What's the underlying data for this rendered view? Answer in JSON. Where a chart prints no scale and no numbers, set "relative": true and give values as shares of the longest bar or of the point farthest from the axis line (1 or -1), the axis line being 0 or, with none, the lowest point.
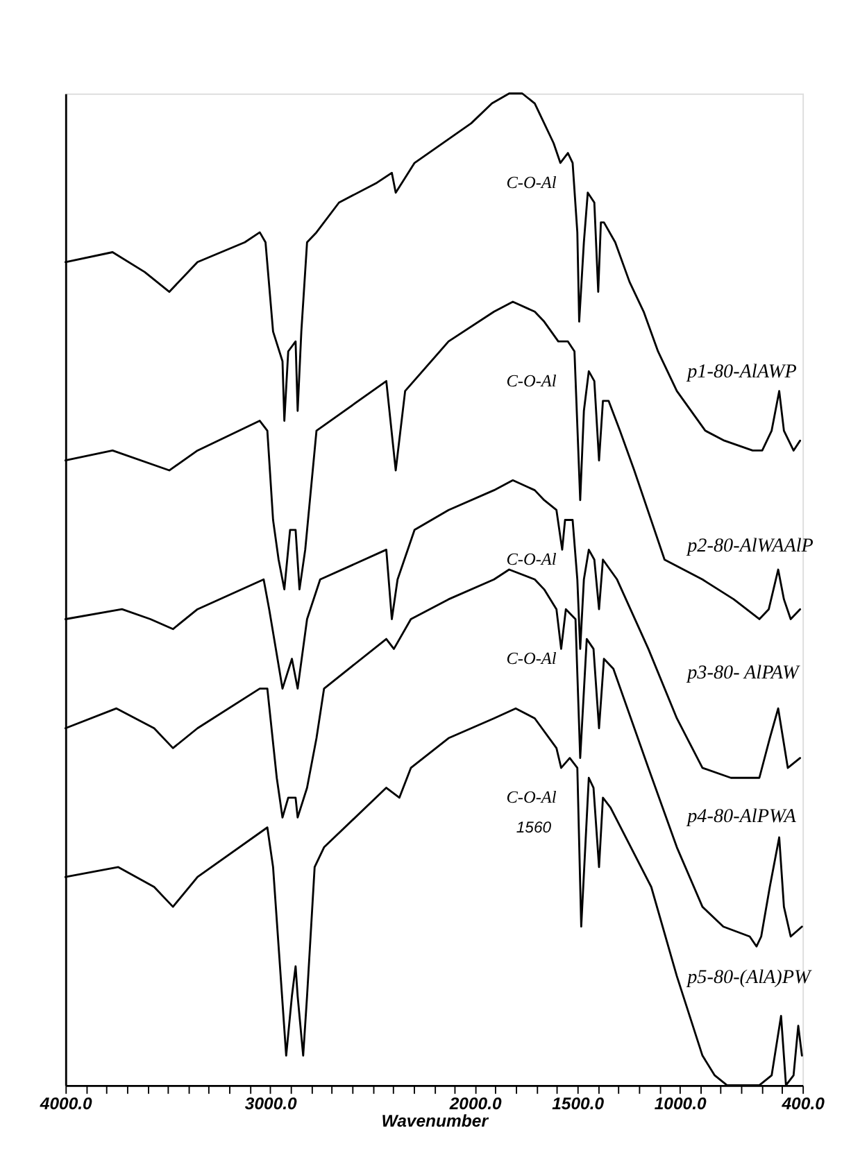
{
  "chart_data": {
    "type": "line",
    "xlabel": "Wavenumber",
    "relative": true,
    "grid": false,
    "tick_labels": "x",
    "xlim": [
      4000,
      400
    ],
    "xticks": [
      {
        "value": 4000,
        "label": "4000.0"
      },
      {
        "value": 3900,
        "label": null
      },
      {
        "value": 3800,
        "label": null
      },
      {
        "value": 3700,
        "label": null
      },
      {
        "value": 3600,
        "label": null
      },
      {
        "value": 3500,
        "label": null
      },
      {
        "value": 3400,
        "label": null
      },
      {
        "value": 3300,
        "label": null
      },
      {
        "value": 3200,
        "label": null
      },
      {
        "value": 3100,
        "label": null
      },
      {
        "value": 3000,
        "label": "3000.0"
      },
      {
        "value": 2900,
        "label": null
      },
      {
        "value": 2800,
        "label": null
      },
      {
        "value": 2700,
        "label": null
      },
      {
        "value": 2600,
        "label": null
      },
      {
        "value": 2500,
        "label": null
      },
      {
        "value": 2400,
        "label": null
      },
      {
        "value": 2300,
        "label": null
      },
      {
        "value": 2200,
        "label": null
      },
      {
        "value": 2100,
        "label": null
      },
      {
        "value": 2000,
        "label": "2000.0"
      },
      {
        "value": 1900,
        "label": null
      },
      {
        "value": 1800,
        "label": null
      },
      {
        "value": 1700,
        "label": null
      },
      {
        "value": 1600,
        "label": null
      },
      {
        "value": 1500,
        "label": "1500.0"
      },
      {
        "value": 1400,
        "label": null
      },
      {
        "value": 1300,
        "label": null
      },
      {
        "value": 1200,
        "label": null
      },
      {
        "value": 1100,
        "label": null
      },
      {
        "value": 1000,
        "label": "1000.0"
      },
      {
        "value": 900,
        "label": null
      },
      {
        "value": 800,
        "label": null
      },
      {
        "value": 700,
        "label": null
      },
      {
        "value": 600,
        "label": null
      },
      {
        "value": 500,
        "label": null
      },
      {
        "value": 400,
        "label": "400.0"
      }
    ],
    "series": [
      {
        "name": "p1-80-AlAWP",
        "color": "#000000",
        "x": [
          4000,
          3770,
          3613,
          3493,
          3355,
          3124,
          3051,
          3023,
          2986,
          2940,
          2931,
          2912,
          2876,
          2866,
          2848,
          2820,
          2774,
          2664,
          2479,
          2406,
          2387,
          2295,
          2018,
          1917,
          1833,
          1769,
          1708,
          1685,
          1616,
          1583,
          1546,
          1523,
          1500,
          1491,
          1468,
          1449,
          1417,
          1398,
          1385,
          1370,
          1315,
          1245,
          1176,
          1106,
          1014,
          875,
          782,
          644,
          597,
          551,
          514,
          491,
          444,
          412
        ],
        "values": [
          0.83,
          0.84,
          0.82,
          0.8,
          0.83,
          0.85,
          0.86,
          0.85,
          0.76,
          0.73,
          0.67,
          0.74,
          0.75,
          0.68,
          0.76,
          0.85,
          0.86,
          0.89,
          0.91,
          0.92,
          0.9,
          0.93,
          0.97,
          0.99,
          1.0,
          1.0,
          0.99,
          0.98,
          0.95,
          0.93,
          0.94,
          0.93,
          0.86,
          0.77,
          0.85,
          0.9,
          0.89,
          0.8,
          0.87,
          0.87,
          0.85,
          0.81,
          0.78,
          0.74,
          0.7,
          0.66,
          0.65,
          0.64,
          0.64,
          0.66,
          0.7,
          0.66,
          0.64,
          0.65
        ]
      },
      {
        "name": "p2-80-AlWAAlP",
        "color": "#000000",
        "x": [
          4000,
          3770,
          3493,
          3355,
          3051,
          3014,
          2986,
          2959,
          2931,
          2903,
          2876,
          2857,
          2829,
          2774,
          2433,
          2387,
          2341,
          2129,
          1907,
          1815,
          1708,
          1662,
          1593,
          1546,
          1514,
          1486,
          1468,
          1444,
          1417,
          1394,
          1375,
          1347,
          1292,
          1222,
          1074,
          889,
          736,
          611,
          565,
          519,
          491,
          458,
          412
        ],
        "values": [
          0.63,
          0.64,
          0.62,
          0.64,
          0.67,
          0.66,
          0.57,
          0.53,
          0.5,
          0.56,
          0.56,
          0.5,
          0.54,
          0.66,
          0.71,
          0.62,
          0.7,
          0.75,
          0.78,
          0.79,
          0.78,
          0.77,
          0.75,
          0.75,
          0.74,
          0.59,
          0.68,
          0.72,
          0.71,
          0.63,
          0.69,
          0.69,
          0.66,
          0.62,
          0.53,
          0.51,
          0.49,
          0.47,
          0.48,
          0.52,
          0.49,
          0.47,
          0.48
        ]
      },
      {
        "name": "p3-80- AlPAW",
        "color": "#000000",
        "x": [
          4000,
          3724,
          3585,
          3475,
          3355,
          3032,
          3005,
          2940,
          2894,
          2866,
          2820,
          2756,
          2433,
          2406,
          2378,
          2295,
          2129,
          1907,
          1815,
          1708,
          1662,
          1602,
          1574,
          1560,
          1523,
          1500,
          1486,
          1468,
          1444,
          1417,
          1394,
          1375,
          1306,
          1153,
          1014,
          889,
          750,
          611,
          560,
          519,
          472,
          412
        ],
        "values": [
          0.47,
          0.48,
          0.47,
          0.46,
          0.48,
          0.51,
          0.48,
          0.4,
          0.43,
          0.4,
          0.47,
          0.51,
          0.54,
          0.47,
          0.51,
          0.56,
          0.58,
          0.6,
          0.61,
          0.6,
          0.59,
          0.58,
          0.54,
          0.57,
          0.57,
          0.51,
          0.44,
          0.51,
          0.54,
          0.53,
          0.48,
          0.53,
          0.51,
          0.44,
          0.37,
          0.32,
          0.31,
          0.31,
          0.35,
          0.38,
          0.32,
          0.33
        ]
      },
      {
        "name": "p4-80-AlPWA",
        "color": "#000000",
        "x": [
          4000,
          3751,
          3567,
          3475,
          3355,
          3051,
          3014,
          2968,
          2940,
          2912,
          2876,
          2866,
          2820,
          2774,
          2737,
          2433,
          2396,
          2313,
          2129,
          1907,
          1833,
          1708,
          1662,
          1602,
          1579,
          1556,
          1509,
          1486,
          1454,
          1421,
          1394,
          1370,
          1324,
          1153,
          1014,
          889,
          787,
          658,
          625,
          602,
          560,
          514,
          491,
          458,
          403
        ],
        "values": [
          0.36,
          0.38,
          0.36,
          0.34,
          0.36,
          0.4,
          0.4,
          0.31,
          0.27,
          0.29,
          0.29,
          0.27,
          0.3,
          0.35,
          0.4,
          0.45,
          0.44,
          0.47,
          0.49,
          0.51,
          0.52,
          0.51,
          0.5,
          0.48,
          0.44,
          0.48,
          0.47,
          0.33,
          0.45,
          0.44,
          0.36,
          0.43,
          0.42,
          0.32,
          0.24,
          0.18,
          0.16,
          0.15,
          0.14,
          0.15,
          0.2,
          0.25,
          0.18,
          0.15,
          0.16
        ]
      },
      {
        "name": "p5-80-(AlA)PW",
        "color": "#000000",
        "x": [
          4000,
          3742,
          3567,
          3475,
          3355,
          3014,
          2986,
          2959,
          2922,
          2894,
          2876,
          2866,
          2839,
          2820,
          2783,
          2737,
          2433,
          2369,
          2313,
          2129,
          1907,
          1801,
          1708,
          1602,
          1579,
          1537,
          1500,
          1481,
          1444,
          1421,
          1394,
          1375,
          1338,
          1139,
          1014,
          889,
          829,
          769,
          611,
          551,
          505,
          481,
          444,
          421,
          403
        ],
        "values": [
          0.21,
          0.22,
          0.2,
          0.18,
          0.21,
          0.26,
          0.22,
          0.14,
          0.03,
          0.09,
          0.12,
          0.09,
          0.03,
          0.09,
          0.22,
          0.24,
          0.3,
          0.29,
          0.32,
          0.35,
          0.37,
          0.38,
          0.37,
          0.34,
          0.32,
          0.33,
          0.32,
          0.16,
          0.31,
          0.3,
          0.22,
          0.29,
          0.28,
          0.2,
          0.11,
          0.03,
          0.01,
          0.0,
          0.0,
          0.01,
          0.07,
          0.0,
          0.01,
          0.06,
          0.03
        ]
      }
    ],
    "annotations": [
      "C-O-Al",
      "C-O-Al",
      "C-O-Al",
      "C-O-Al",
      "C-O-Al",
      "1560"
    ]
  }
}
